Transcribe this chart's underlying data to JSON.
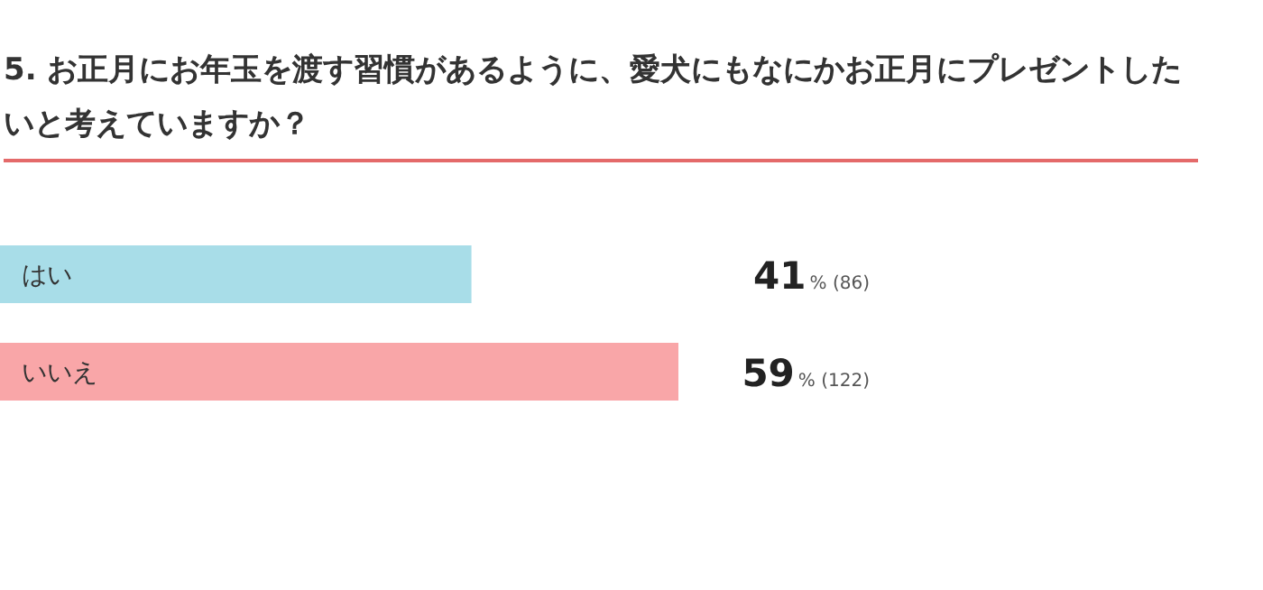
{
  "chart_data": {
    "type": "bar",
    "orientation": "horizontal",
    "title": "5. お正月にお年玉を渡す習慣があるように、愛犬にもなにかお正月にプレゼントしたいと考えていますか？",
    "categories": [
      "はい",
      "いいえ"
    ],
    "values": [
      41,
      59
    ],
    "colors": [
      "#a8dde8",
      "#f9a6a8"
    ],
    "value_labels": [
      "41% (86)",
      "59% (122)"
    ],
    "tick_labels": false
  }
}
